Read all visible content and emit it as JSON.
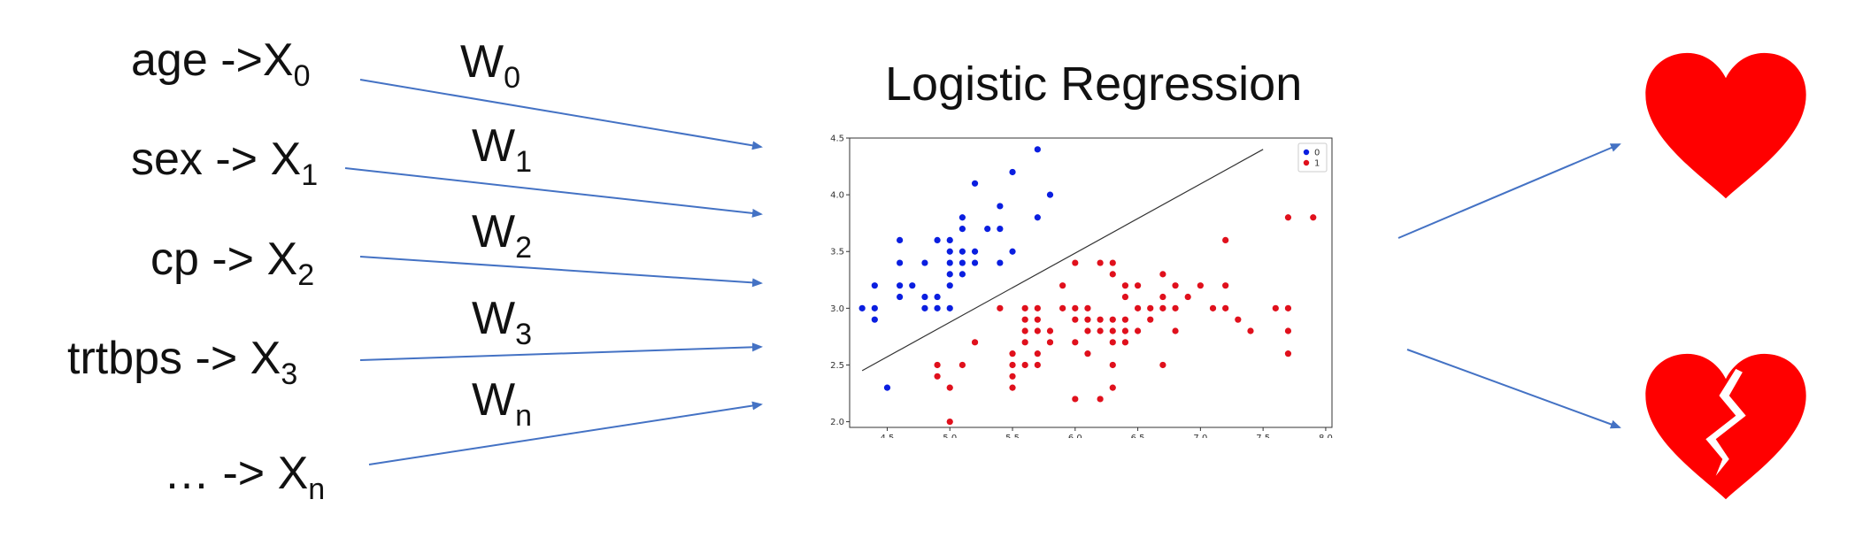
{
  "inputs": [
    {
      "name": "age ->",
      "x_var": "X",
      "sub": "0"
    },
    {
      "name": "sex -> ",
      "x_var": "X",
      "sub": "1"
    },
    {
      "name": "cp -> ",
      "x_var": "X",
      "sub": "2"
    },
    {
      "name": "trtbps -> ",
      "x_var": "X",
      "sub": "3"
    },
    {
      "name": "… -> ",
      "x_var": "X",
      "sub": "n"
    }
  ],
  "weights": [
    {
      "w": "W",
      "sub": "0"
    },
    {
      "w": "W",
      "sub": "1"
    },
    {
      "w": "W",
      "sub": "2"
    },
    {
      "w": "W",
      "sub": "3"
    },
    {
      "w": "W",
      "sub": "n"
    }
  ],
  "model_title": "Logistic Regression",
  "outputs": [
    {
      "icon": "heart-icon",
      "color": "#ff0000"
    },
    {
      "icon": "broken-heart-icon",
      "color": "#ff0000"
    }
  ],
  "colors": {
    "arrow": "#4472c4",
    "class0": "#0a1ee0",
    "class1": "#e0101c"
  },
  "chart_data": {
    "type": "scatter",
    "xlim": [
      4.2,
      8.05
    ],
    "ylim": [
      1.95,
      4.5
    ],
    "x_ticks": [
      "4.5",
      "5.0",
      "5.5",
      "6.0",
      "6.5",
      "7.0",
      "7.5",
      "8.0"
    ],
    "y_ticks": [
      "2.0",
      "2.5",
      "3.0",
      "3.5",
      "4.0",
      "4.5"
    ],
    "legend": {
      "position": "top-right",
      "entries": [
        "0",
        "1"
      ]
    },
    "decision_boundary": [
      [
        4.3,
        2.45
      ],
      [
        7.5,
        4.4
      ]
    ],
    "series": [
      {
        "name": "0",
        "points": [
          [
            4.3,
            3.0
          ],
          [
            4.4,
            2.9
          ],
          [
            4.4,
            3.0
          ],
          [
            4.4,
            3.2
          ],
          [
            4.5,
            2.3
          ],
          [
            4.6,
            3.1
          ],
          [
            4.6,
            3.2
          ],
          [
            4.6,
            3.4
          ],
          [
            4.6,
            3.6
          ],
          [
            4.7,
            3.2
          ],
          [
            4.8,
            3.0
          ],
          [
            4.8,
            3.1
          ],
          [
            4.8,
            3.4
          ],
          [
            4.9,
            3.0
          ],
          [
            4.9,
            3.1
          ],
          [
            4.9,
            3.6
          ],
          [
            5.0,
            3.0
          ],
          [
            5.0,
            3.2
          ],
          [
            5.0,
            3.3
          ],
          [
            5.0,
            3.4
          ],
          [
            5.0,
            3.5
          ],
          [
            5.0,
            3.6
          ],
          [
            5.1,
            3.3
          ],
          [
            5.1,
            3.4
          ],
          [
            5.1,
            3.5
          ],
          [
            5.1,
            3.7
          ],
          [
            5.1,
            3.8
          ],
          [
            5.2,
            3.4
          ],
          [
            5.2,
            3.5
          ],
          [
            5.2,
            4.1
          ],
          [
            5.3,
            3.7
          ],
          [
            5.4,
            3.4
          ],
          [
            5.4,
            3.7
          ],
          [
            5.4,
            3.9
          ],
          [
            5.5,
            3.5
          ],
          [
            5.5,
            4.2
          ],
          [
            5.7,
            3.8
          ],
          [
            5.7,
            4.4
          ],
          [
            5.8,
            4.0
          ]
        ]
      },
      {
        "name": "1",
        "points": [
          [
            4.9,
            2.4
          ],
          [
            4.9,
            2.5
          ],
          [
            5.0,
            2.0
          ],
          [
            5.0,
            2.3
          ],
          [
            5.1,
            2.5
          ],
          [
            5.2,
            2.7
          ],
          [
            5.4,
            3.0
          ],
          [
            5.5,
            2.3
          ],
          [
            5.5,
            2.4
          ],
          [
            5.5,
            2.5
          ],
          [
            5.5,
            2.6
          ],
          [
            5.6,
            2.5
          ],
          [
            5.6,
            2.7
          ],
          [
            5.6,
            2.8
          ],
          [
            5.6,
            2.9
          ],
          [
            5.6,
            3.0
          ],
          [
            5.7,
            2.5
          ],
          [
            5.7,
            2.6
          ],
          [
            5.7,
            2.8
          ],
          [
            5.7,
            2.9
          ],
          [
            5.7,
            3.0
          ],
          [
            5.8,
            2.7
          ],
          [
            5.8,
            2.8
          ],
          [
            5.9,
            3.0
          ],
          [
            5.9,
            3.2
          ],
          [
            6.0,
            2.2
          ],
          [
            6.0,
            2.7
          ],
          [
            6.0,
            2.9
          ],
          [
            6.0,
            3.0
          ],
          [
            6.0,
            3.4
          ],
          [
            6.1,
            2.6
          ],
          [
            6.1,
            2.8
          ],
          [
            6.1,
            2.9
          ],
          [
            6.1,
            3.0
          ],
          [
            6.2,
            2.2
          ],
          [
            6.2,
            2.8
          ],
          [
            6.2,
            2.9
          ],
          [
            6.2,
            3.4
          ],
          [
            6.3,
            2.3
          ],
          [
            6.3,
            2.5
          ],
          [
            6.3,
            2.7
          ],
          [
            6.3,
            2.8
          ],
          [
            6.3,
            2.9
          ],
          [
            6.3,
            3.3
          ],
          [
            6.3,
            3.4
          ],
          [
            6.4,
            2.7
          ],
          [
            6.4,
            2.8
          ],
          [
            6.4,
            2.9
          ],
          [
            6.4,
            3.1
          ],
          [
            6.4,
            3.2
          ],
          [
            6.5,
            2.8
          ],
          [
            6.5,
            3.0
          ],
          [
            6.5,
            3.2
          ],
          [
            6.6,
            2.9
          ],
          [
            6.6,
            3.0
          ],
          [
            6.7,
            2.5
          ],
          [
            6.7,
            3.0
          ],
          [
            6.7,
            3.1
          ],
          [
            6.7,
            3.3
          ],
          [
            6.8,
            2.8
          ],
          [
            6.8,
            3.0
          ],
          [
            6.8,
            3.2
          ],
          [
            6.9,
            3.1
          ],
          [
            7.0,
            3.2
          ],
          [
            7.1,
            3.0
          ],
          [
            7.2,
            3.0
          ],
          [
            7.2,
            3.2
          ],
          [
            7.2,
            3.6
          ],
          [
            7.3,
            2.9
          ],
          [
            7.4,
            2.8
          ],
          [
            7.6,
            3.0
          ],
          [
            7.7,
            2.6
          ],
          [
            7.7,
            2.8
          ],
          [
            7.7,
            3.0
          ],
          [
            7.7,
            3.8
          ],
          [
            7.9,
            3.8
          ]
        ]
      }
    ]
  }
}
